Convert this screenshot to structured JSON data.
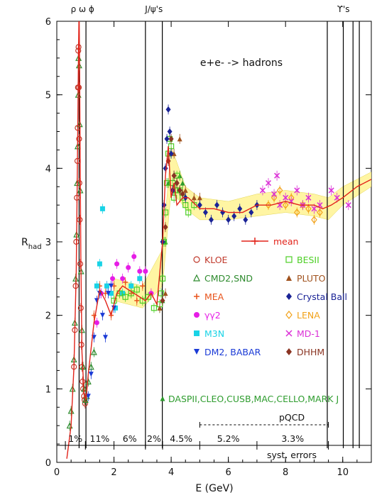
{
  "chart_data": {
    "type": "scatter",
    "title": "e+e- -> hadrons",
    "xlabel": "E (GeV)",
    "ylabel": "R",
    "ylabel_sub": "had",
    "xlim": [
      0,
      11
    ],
    "ylim": [
      0,
      6
    ],
    "x_ticks": [
      0,
      2,
      4,
      6,
      8,
      10
    ],
    "y_ticks": [
      0,
      1,
      2,
      3,
      4,
      5,
      6
    ],
    "grid": false,
    "legend_position": "center-right",
    "resonances": [
      {
        "label": "ρ ω ϕ",
        "x": [
          0.78,
          1.02
        ]
      },
      {
        "label": "J/ψ's",
        "x": [
          3.1,
          3.69
        ]
      },
      {
        "label": "ϒ's",
        "x": [
          9.46,
          10.02,
          10.36,
          10.58
        ]
      }
    ],
    "mean_label": "mean",
    "mean_curve": {
      "x": [
        1.1,
        1.3,
        1.5,
        1.7,
        1.9,
        2.1,
        2.3,
        2.5,
        2.7,
        2.9,
        3.1,
        3.3,
        3.5,
        3.7,
        3.8,
        3.9,
        4.0,
        4.1,
        4.2,
        4.4,
        4.6,
        5.0,
        5.5,
        6.0,
        6.5,
        7.0,
        7.5,
        8.0,
        8.5,
        9.0,
        9.3,
        9.6,
        10.0,
        10.5,
        11.0
      ],
      "y": [
        1.2,
        1.9,
        2.35,
        2.2,
        2.0,
        2.3,
        2.4,
        2.35,
        2.3,
        2.25,
        2.2,
        2.3,
        2.15,
        3.0,
        3.9,
        4.3,
        3.6,
        3.8,
        3.5,
        3.6,
        3.6,
        3.45,
        3.45,
        3.4,
        3.4,
        3.5,
        3.5,
        3.55,
        3.5,
        3.5,
        3.45,
        3.5,
        3.6,
        3.75,
        3.85
      ]
    },
    "band": {
      "x": [
        2.0,
        3.0,
        3.7,
        4.0,
        4.5,
        5.0,
        6.0,
        7.0,
        8.0,
        9.0,
        9.5,
        10.0,
        11.0
      ],
      "lo": [
        2.2,
        2.1,
        2.4,
        3.7,
        3.45,
        3.3,
        3.3,
        3.35,
        3.4,
        3.35,
        3.3,
        3.5,
        3.75
      ],
      "hi": [
        2.5,
        2.4,
        2.9,
        4.3,
        3.75,
        3.6,
        3.55,
        3.65,
        3.7,
        3.65,
        3.6,
        3.75,
        3.95
      ]
    },
    "pqcd_label": "pQCD",
    "pqcd_range": [
      5.0,
      9.5
    ],
    "syst_errors_label": "syst. errors",
    "syst_errors": [
      {
        "label": "1%",
        "range": [
          0.3,
          1.0
        ]
      },
      {
        "label": "11%",
        "range": [
          1.0,
          2.0
        ]
      },
      {
        "label": "6%",
        "range": [
          2.0,
          3.1
        ]
      },
      {
        "label": "2%",
        "range": [
          3.1,
          3.7
        ]
      },
      {
        "label": "4.5%",
        "range": [
          3.7,
          5.0
        ]
      },
      {
        "label": "5.2%",
        "range": [
          5.0,
          7.0
        ]
      },
      {
        "label": "3.3%",
        "range": [
          7.0,
          9.5
        ]
      }
    ],
    "series": [
      {
        "name": "KLOE",
        "color": "#c0392b",
        "marker": "open-circle",
        "x": [
          0.6,
          0.63,
          0.66,
          0.68,
          0.7,
          0.72,
          0.73,
          0.74,
          0.75,
          0.76,
          0.77,
          0.78,
          0.79,
          0.8,
          0.82,
          0.84,
          0.86,
          0.88,
          0.9,
          0.92,
          0.95,
          0.97,
          0.99
        ],
        "y": [
          1.3,
          1.8,
          2.4,
          3.0,
          3.6,
          4.1,
          4.55,
          5.1,
          5.6,
          5.65,
          5.1,
          4.4,
          3.8,
          3.3,
          2.7,
          2.1,
          1.6,
          1.3,
          1.1,
          1.0,
          0.9,
          0.85,
          0.8
        ]
      },
      {
        "name": "CMD2,SND",
        "color": "#2e8b2e",
        "marker": "open-triangle",
        "x": [
          0.45,
          0.5,
          0.55,
          0.6,
          0.63,
          0.66,
          0.69,
          0.71,
          0.73,
          0.75,
          0.76,
          0.78,
          0.8,
          0.82,
          0.85,
          0.88,
          0.92,
          0.96,
          1.0,
          1.05,
          1.1,
          1.2,
          1.3
        ],
        "y": [
          0.5,
          0.7,
          1.0,
          1.4,
          1.9,
          2.5,
          3.1,
          3.8,
          4.3,
          5.0,
          5.5,
          5.4,
          4.6,
          3.7,
          2.6,
          1.8,
          1.3,
          1.0,
          0.85,
          0.9,
          1.1,
          1.3,
          1.5
        ]
      },
      {
        "name": "MEA",
        "color": "#e8541c",
        "marker": "plus",
        "x": [
          1.3,
          1.5,
          1.7,
          1.9,
          2.0,
          2.2,
          2.4,
          2.6,
          2.8,
          3.0
        ],
        "y": [
          2.0,
          2.4,
          2.3,
          2.0,
          2.4,
          2.3,
          2.45,
          2.3,
          2.2,
          2.4
        ]
      },
      {
        "name": "γγ2",
        "color": "#e61de6",
        "marker": "filled-circle",
        "x": [
          1.4,
          1.55,
          1.75,
          1.95,
          2.1,
          2.3,
          2.5,
          2.7,
          2.9,
          3.1,
          3.3
        ],
        "y": [
          1.9,
          2.3,
          2.4,
          2.5,
          2.7,
          2.5,
          2.65,
          2.8,
          2.6,
          2.6,
          2.3
        ]
      },
      {
        "name": "M3N",
        "color": "#19d3e6",
        "marker": "filled-square",
        "x": [
          1.4,
          1.5,
          1.6,
          1.75,
          1.9,
          2.05,
          2.3,
          2.6,
          2.9
        ],
        "y": [
          2.4,
          2.7,
          3.45,
          2.4,
          2.3,
          2.1,
          2.3,
          2.4,
          2.5
        ]
      },
      {
        "name": "DM2, BABAR",
        "color": "#1a3ad6",
        "marker": "filled-triangle-down",
        "x": [
          1.1,
          1.2,
          1.3,
          1.4,
          1.5,
          1.6,
          1.7,
          1.8,
          1.9,
          2.0
        ],
        "y": [
          0.9,
          1.2,
          1.7,
          2.2,
          2.3,
          2.0,
          1.7,
          2.3,
          2.4,
          2.1
        ]
      },
      {
        "name": "DASPII,CLEO,CUSB,MAC,CELLO,MARK J",
        "color": "#2e9c2e",
        "marker": "filled-triangle",
        "x": [
          3.6,
          3.7,
          3.8,
          3.9,
          4.0,
          4.1,
          4.3,
          4.4
        ],
        "y": [
          2.1,
          2.2,
          3.0,
          3.8,
          4.2,
          3.7,
          3.9,
          3.8
        ]
      },
      {
        "name": "BESII",
        "color": "#4ccf24",
        "marker": "open-square",
        "x": [
          2.0,
          2.2,
          2.4,
          2.6,
          2.8,
          3.0,
          3.2,
          3.4,
          3.6,
          3.65,
          3.7,
          3.75,
          3.8,
          3.85,
          3.9,
          3.95,
          4.0,
          4.05,
          4.1,
          4.15,
          4.2,
          4.3,
          4.4,
          4.5,
          4.6,
          4.8
        ],
        "y": [
          2.2,
          2.3,
          2.25,
          2.3,
          2.35,
          2.2,
          2.25,
          2.1,
          2.15,
          2.3,
          2.5,
          3.0,
          3.4,
          3.8,
          4.2,
          4.4,
          4.3,
          3.8,
          3.6,
          3.7,
          3.9,
          3.7,
          3.6,
          3.5,
          3.4,
          3.5
        ]
      },
      {
        "name": "PLUTO",
        "color": "#a0521e",
        "marker": "filled-triangle",
        "x": [
          3.6,
          3.8,
          4.1,
          4.3,
          4.5,
          4.8,
          5.0
        ],
        "y": [
          2.1,
          2.3,
          4.2,
          4.4,
          3.7,
          3.6,
          3.6
        ]
      },
      {
        "name": "Crystal Ball",
        "color": "#1a2396",
        "marker": "filled-diamond",
        "x": [
          3.7,
          3.75,
          3.8,
          3.85,
          3.9,
          3.95,
          4.0,
          4.05,
          4.1,
          4.2,
          4.3,
          4.5,
          5.0,
          5.2,
          5.4,
          5.6,
          5.8,
          6.0,
          6.2,
          6.4,
          6.6,
          6.8,
          7.0
        ],
        "y": [
          3.0,
          3.5,
          4.0,
          4.4,
          4.8,
          4.5,
          4.2,
          3.7,
          3.9,
          3.8,
          3.7,
          3.6,
          3.5,
          3.4,
          3.3,
          3.5,
          3.4,
          3.3,
          3.35,
          3.45,
          3.3,
          3.4,
          3.5
        ]
      },
      {
        "name": "LENA",
        "color": "#f2a21a",
        "marker": "open-diamond",
        "x": [
          7.4,
          7.6,
          7.8,
          8.0,
          8.2,
          8.4,
          8.6,
          8.8,
          9.0,
          9.2
        ],
        "y": [
          3.5,
          3.6,
          3.7,
          3.5,
          3.6,
          3.4,
          3.5,
          3.45,
          3.3,
          3.4
        ]
      },
      {
        "name": "MD-1",
        "color": "#db2fd6",
        "marker": "cross",
        "x": [
          7.2,
          7.4,
          7.6,
          7.7,
          7.8,
          8.0,
          8.2,
          8.4,
          8.6,
          8.8,
          9.0,
          9.2,
          9.6,
          9.8,
          10.2
        ],
        "y": [
          3.7,
          3.8,
          3.65,
          3.9,
          3.5,
          3.6,
          3.55,
          3.7,
          3.5,
          3.6,
          3.45,
          3.5,
          3.7,
          3.6,
          3.5
        ]
      },
      {
        "name": "DHHM",
        "color": "#8a3422",
        "marker": "filled-diamond",
        "x": [
          3.7,
          3.8,
          3.9,
          4.0,
          4.1,
          4.2,
          4.3,
          4.4
        ],
        "y": [
          2.2,
          3.2,
          4.1,
          4.4,
          3.9,
          3.8,
          3.7,
          3.65
        ]
      }
    ]
  }
}
